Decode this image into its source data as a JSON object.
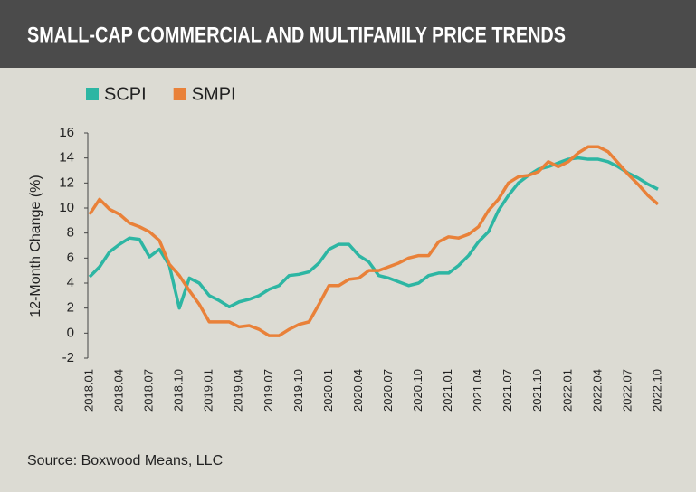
{
  "chart_data": {
    "type": "line",
    "title": "SMALL-CAP COMMERCIAL AND MULTIFAMILY PRICE TRENDS",
    "y_label": "12-Month Change (%)",
    "source": "Source: Boxwood Means, LLC",
    "categories": [
      "2018.01",
      null,
      null,
      "2018.04",
      null,
      null,
      "2018.07",
      null,
      null,
      "2018.10",
      null,
      null,
      "2019.01",
      null,
      null,
      "2019.04",
      null,
      null,
      "2019.07",
      null,
      null,
      "2019.10",
      null,
      null,
      "2020.01",
      null,
      null,
      "2020.04",
      null,
      null,
      "2020.07",
      null,
      null,
      "2020.10",
      null,
      null,
      "2021.01",
      null,
      null,
      "2021.04",
      null,
      null,
      "2021.07",
      null,
      null,
      "2021.10",
      null,
      null,
      "2022.01",
      null,
      null,
      "2022.04",
      null,
      null,
      "2022.07",
      null,
      null,
      "2022.10"
    ],
    "series": [
      {
        "name": "SCPI",
        "color": "#2db6a3",
        "values": [
          4.5,
          5.3,
          6.5,
          7.1,
          7.6,
          7.5,
          6.1,
          6.7,
          5.4,
          2.0,
          4.4,
          4.0,
          3.0,
          2.6,
          2.1,
          2.5,
          2.7,
          3.0,
          3.5,
          3.8,
          4.6,
          4.7,
          4.9,
          5.6,
          6.7,
          7.1,
          7.1,
          6.2,
          5.7,
          4.6,
          4.4,
          4.1,
          3.8,
          4.0,
          4.6,
          4.8,
          4.8,
          5.4,
          6.2,
          7.3,
          8.1,
          9.8,
          11.0,
          12.0,
          12.6,
          13.1,
          13.3,
          13.6,
          13.9,
          14.0,
          13.9,
          13.9,
          13.7,
          13.3,
          12.8,
          12.4,
          11.9,
          11.5
        ]
      },
      {
        "name": "SMPI",
        "color": "#e98139",
        "values": [
          9.5,
          10.7,
          9.9,
          9.5,
          8.8,
          8.5,
          8.1,
          7.4,
          5.5,
          4.6,
          3.4,
          2.3,
          0.9,
          0.9,
          0.9,
          0.5,
          0.6,
          0.3,
          -0.2,
          -0.2,
          0.3,
          0.7,
          0.9,
          2.3,
          3.8,
          3.8,
          4.3,
          4.4,
          5.0,
          5.0,
          5.3,
          5.6,
          6.0,
          6.2,
          6.2,
          7.3,
          7.7,
          7.6,
          7.9,
          8.5,
          9.8,
          10.7,
          12.0,
          12.5,
          12.6,
          12.9,
          13.7,
          13.3,
          13.7,
          14.4,
          14.9,
          14.9,
          14.5,
          13.6,
          12.7,
          11.9,
          11.0,
          10.3
        ]
      }
    ],
    "ylim": [
      -2,
      16
    ],
    "yticks": [
      -2,
      0,
      2,
      4,
      6,
      8,
      10,
      12,
      14,
      16
    ],
    "grid": false,
    "legend": "top-left"
  }
}
